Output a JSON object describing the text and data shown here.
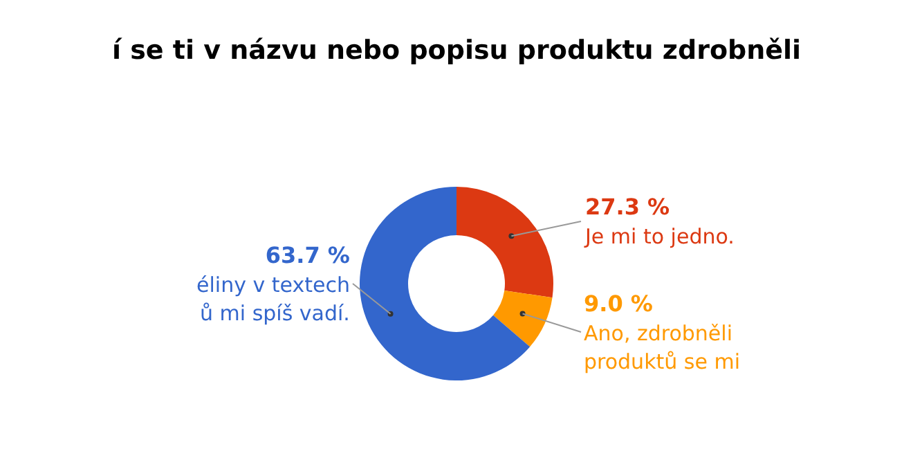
{
  "chart_data": {
    "type": "donut",
    "title": "í se ti v názvu nebo popisu produktu zdrobněli",
    "categories": [
      "Je mi to jedno.",
      "Ano, zdrobněli\nproduktů se mi",
      "éliny v textech\nů mi spíš vadí."
    ],
    "values": [
      27.3,
      9.0,
      63.7
    ],
    "value_labels": [
      "27.3 %",
      "9.0 %",
      "63.7 %"
    ],
    "colors": [
      "#dc3912",
      "#ff9900",
      "#3366cc"
    ],
    "legend": false
  }
}
